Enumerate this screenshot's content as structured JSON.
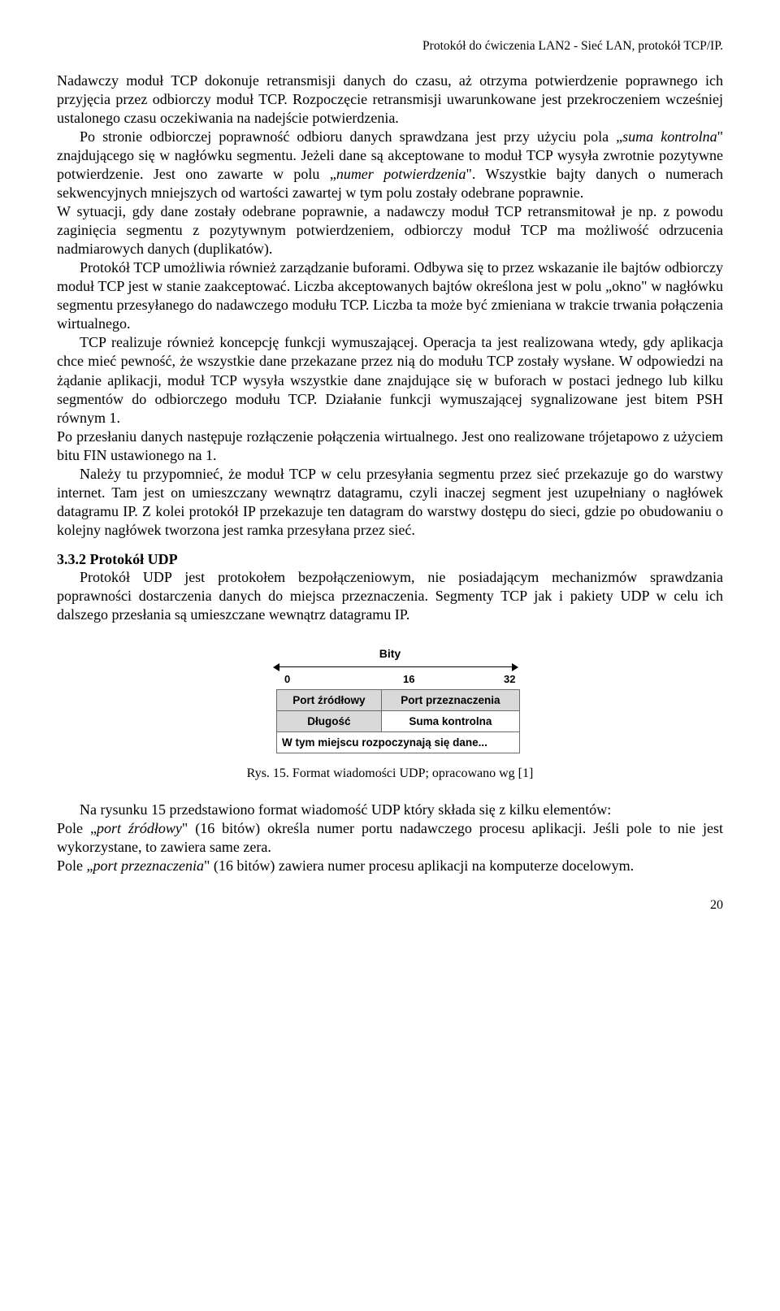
{
  "header": "Protokół do ćwiczenia LAN2 - Sieć LAN, protokół TCP/IP.",
  "p1": "Nadawczy moduł TCP dokonuje retransmisji danych do czasu, aż otrzyma potwierdzenie poprawnego ich przyjęcia przez odbiorczy moduł TCP. Rozpoczęcie retransmisji uwarunkowane jest przekroczeniem wcześniej ustalonego czasu oczekiwania na nadejście potwierdzenia.",
  "p2a": "Po stronie odbiorczej poprawność odbioru danych sprawdzana jest przy użyciu pola „",
  "p2i1": "suma kontrolna",
  "p2b": "\" znajdującego się w nagłówku segmentu. Jeżeli dane są akceptowane to moduł TCP wysyła zwrotnie pozytywne potwierdzenie. Jest ono zawarte w polu „",
  "p2i2": "numer potwierdzenia",
  "p2c": "\". Wszystkie bajty danych o numerach sekwencyjnych mniejszych od wartości zawartej w tym polu zostały odebrane poprawnie.",
  "p3": "W sytuacji, gdy dane zostały odebrane poprawnie, a nadawczy moduł TCP retransmitował je np. z powodu zaginięcia segmentu z pozytywnym potwierdzeniem, odbiorczy moduł TCP ma możliwość odrzucenia nadmiarowych danych (duplikatów).",
  "p4": "Protokół TCP umożliwia również zarządzanie buforami. Odbywa się to przez wskazanie ile bajtów odbiorczy moduł TCP jest w stanie zaakceptować. Liczba akceptowanych bajtów określona jest w polu „okno\" w nagłówku segmentu przesyłanego do nadawczego modułu TCP. Liczba ta może być zmieniana w trakcie trwania połączenia wirtualnego.",
  "p5": "TCP realizuje również koncepcję funkcji wymuszającej. Operacja ta jest realizowana wtedy, gdy aplikacja chce mieć pewność, że wszystkie dane przekazane przez nią do modułu TCP zostały wysłane. W odpowiedzi na żądanie aplikacji, moduł TCP wysyła wszystkie dane znajdujące się w buforach w postaci jednego lub kilku segmentów do odbiorczego modułu TCP. Działanie funkcji wymuszającej sygnalizowane jest bitem PSH równym 1.",
  "p6": "Po przesłaniu danych następuje rozłączenie połączenia wirtualnego. Jest ono realizowane trójetapowo z użyciem bitu FIN ustawionego na 1.",
  "p7": "Należy tu przypomnieć, że moduł TCP w celu przesyłania segmentu przez sieć przekazuje go do warstwy internet. Tam jest on umieszczany wewnątrz datagramu, czyli inaczej segment jest uzupełniany o nagłówek datagramu IP. Z kolei protokół IP przekazuje ten datagram do warstwy dostępu do sieci, gdzie po obudowaniu o kolejny nagłówek tworzona jest ramka przesyłana przez sieć.",
  "sec_heading": "3.3.2 Protokół UDP",
  "p8": "Protokół UDP jest protokołem bezpołączeniowym, nie posiadającym mechanizmów sprawdzania poprawności dostarczenia danych do miejsca przeznaczenia. Segmenty TCP jak i pakiety UDP w celu ich dalszego przesłania są umieszczane wewnątrz datagramu IP.",
  "diagram": {
    "bity": "Bity",
    "tick0": "0",
    "tick16": "16",
    "tick32": "32",
    "cell_src": "Port źródłowy",
    "cell_dst": "Port przeznaczenia",
    "cell_len": "Długość",
    "cell_sum": "Suma kontrolna",
    "cell_data": "W tym miejscu rozpoczynają się dane..."
  },
  "caption": "Rys. 15.  Format wiadomości UDP; opracowano wg [1]",
  "p9": "Na rysunku 15 przedstawiono format wiadomość UDP który składa się z kilku elementów:",
  "p10a": "Pole „",
  "p10i": "port źródłowy",
  "p10b": "\" (16 bitów) określa numer portu nadawczego procesu aplikacji. Jeśli pole to nie jest wykorzystane, to zawiera same zera.",
  "p11a": "Pole „",
  "p11i": "port przeznaczenia",
  "p11b": "\" (16 bitów) zawiera numer procesu aplikacji na komputerze docelowym.",
  "page_no": "20",
  "colors": {
    "grey_cell": "#d9d9d9",
    "border": "#6a6a6a",
    "text": "#000000",
    "bg": "#ffffff"
  }
}
